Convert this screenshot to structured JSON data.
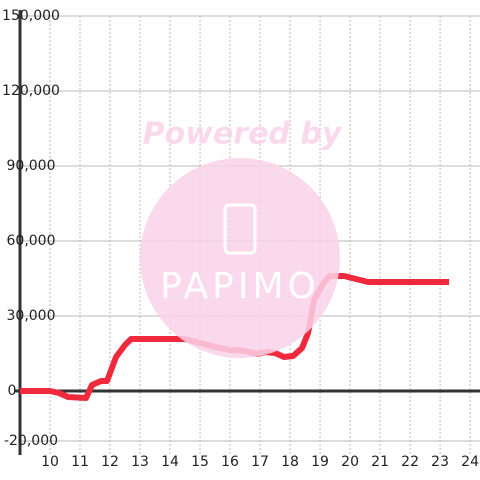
{
  "chart_data": {
    "type": "line",
    "watermark": {
      "top": "Powered by",
      "brand": "PAPIMO"
    },
    "x": [
      9,
      10,
      10.3,
      10.6,
      11.2,
      11.4,
      11.7,
      11.9,
      12.2,
      12.5,
      12.7,
      13,
      14.5,
      15,
      15.5,
      16,
      16.5,
      16.9,
      17.2,
      17.5,
      17.8,
      18.1,
      18.4,
      18.6,
      18.8,
      19.1,
      19.3,
      19.8,
      20.2,
      20.6,
      21,
      23.3
    ],
    "series": [
      {
        "color": "#ee2a3c",
        "values": [
          0,
          0,
          -800,
          -2400,
          -2800,
          2400,
          4000,
          4000,
          13600,
          18400,
          20800,
          20800,
          20800,
          19200,
          17600,
          16400,
          16000,
          14800,
          15600,
          15200,
          13600,
          14000,
          17200,
          23200,
          36400,
          42800,
          46000,
          46000,
          44800,
          43600,
          43600,
          43600
        ]
      }
    ],
    "xlim": [
      9,
      24.33
    ],
    "xticks": [
      10,
      11,
      12,
      13,
      14,
      15,
      16,
      17,
      18,
      19,
      20,
      21,
      22,
      23,
      24
    ],
    "ylim": [
      -20000,
      150000
    ],
    "yticks": [
      {
        "value": -20000,
        "label": "-20,000"
      },
      0,
      {
        "value": 30000,
        "label": "30,000"
      },
      {
        "value": 60000,
        "label": "60,000"
      },
      {
        "value": 90000,
        "label": "90,000"
      },
      {
        "value": 120000,
        "label": "120,000"
      },
      {
        "value": 150000,
        "label": "150,000"
      }
    ],
    "grid": true
  }
}
